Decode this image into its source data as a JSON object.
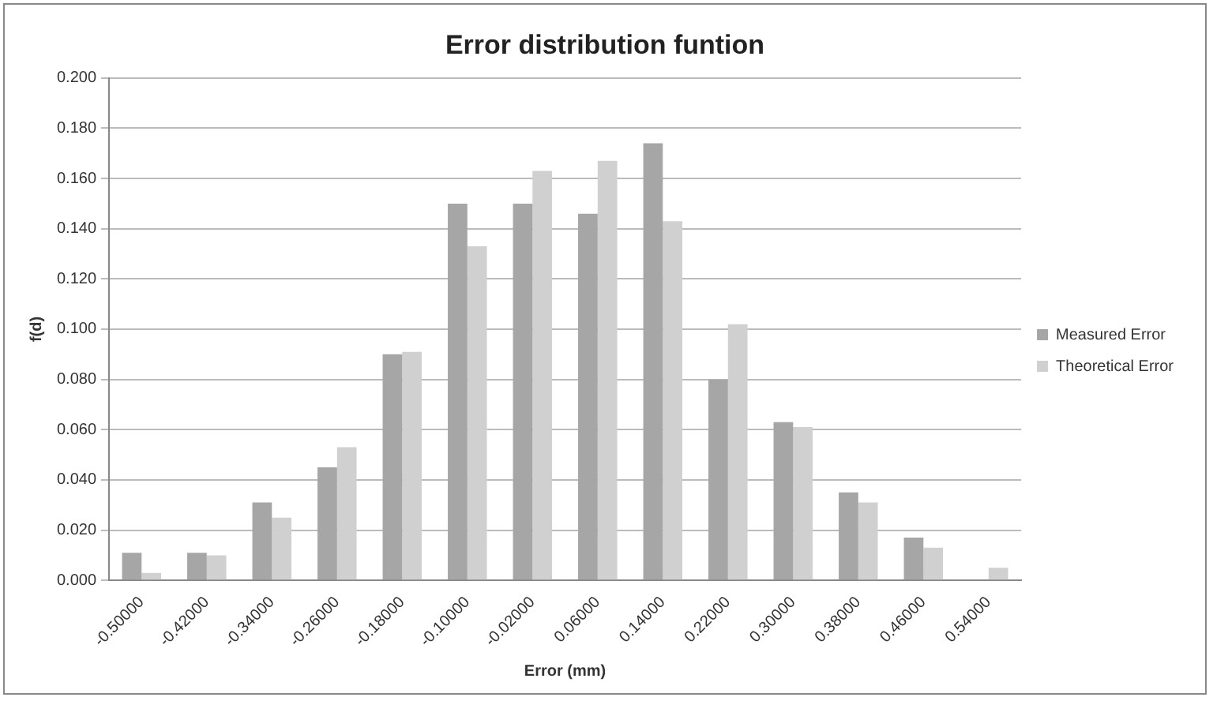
{
  "chart_data": {
    "type": "bar",
    "title": "Error distribution funtion",
    "xlabel": "Error (mm)",
    "ylabel": "f(d)",
    "categories": [
      "-0.50000",
      "-0.42000",
      "-0.34000",
      "-0.26000",
      "-0.18000",
      "-0.10000",
      "-0.02000",
      "0.06000",
      "0.14000",
      "0.22000",
      "0.30000",
      "0.38000",
      "0.46000",
      "0.54000"
    ],
    "series": [
      {
        "name": "Measured Error",
        "color": "#a6a6a6",
        "values": [
          0.011,
          0.011,
          0.031,
          0.045,
          0.09,
          0.15,
          0.15,
          0.146,
          0.174,
          0.08,
          0.063,
          0.035,
          0.017,
          0
        ]
      },
      {
        "name": "Theoretical Error",
        "color": "#d0d0d0",
        "values": [
          0.003,
          0.01,
          0.025,
          0.053,
          0.091,
          0.133,
          0.163,
          0.167,
          0.143,
          0.102,
          0.061,
          0.031,
          0.013,
          0.005
        ]
      }
    ],
    "ylim": [
      0,
      0.2
    ],
    "yticks": [
      {
        "value": 0,
        "label": "0.000"
      },
      {
        "value": 0.02,
        "label": "0.020"
      },
      {
        "value": 0.04,
        "label": "0.040"
      },
      {
        "value": 0.06,
        "label": "0.060"
      },
      {
        "value": 0.08,
        "label": "0.080"
      },
      {
        "value": 0.1,
        "label": "0.100"
      },
      {
        "value": 0.12,
        "label": "0.120"
      },
      {
        "value": 0.14,
        "label": "0.140"
      },
      {
        "value": 0.16,
        "label": "0.160"
      },
      {
        "value": 0.18,
        "label": "0.180"
      },
      {
        "value": 0.2,
        "label": "0.200"
      }
    ],
    "grid": "y",
    "legend": "right"
  }
}
